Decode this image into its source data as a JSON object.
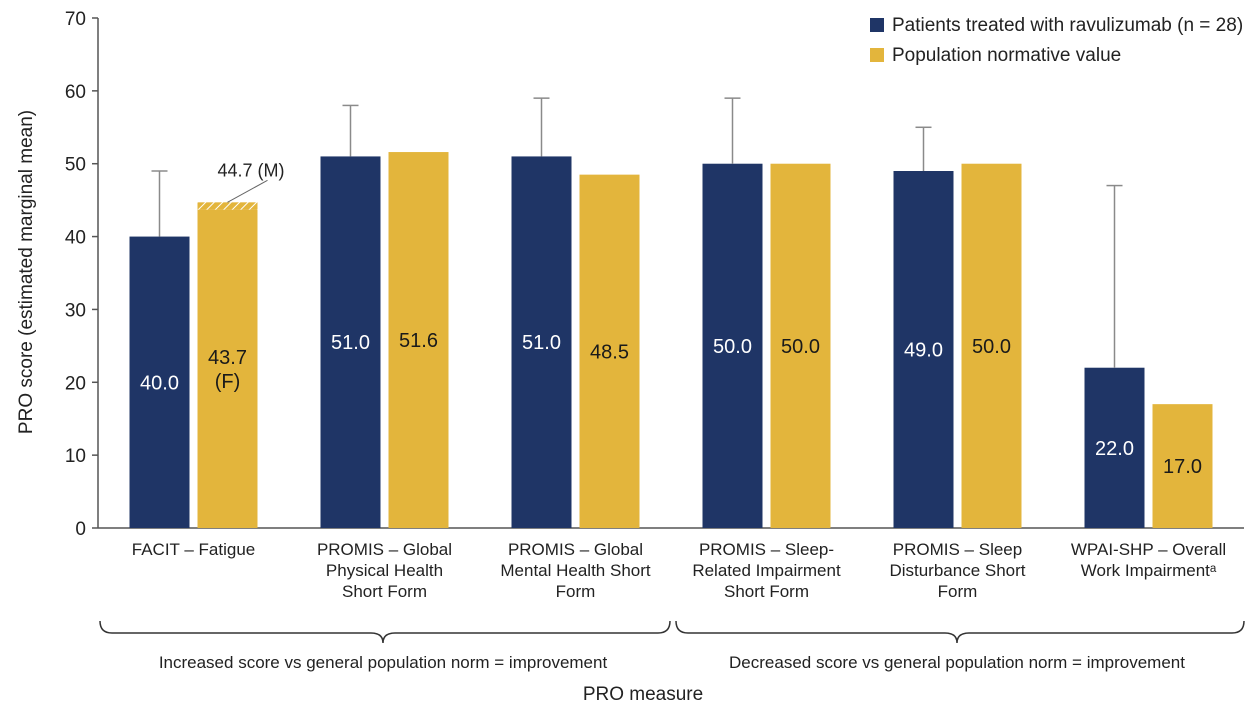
{
  "chart_data": {
    "type": "bar",
    "ylabel": "PRO score (estimated marginal mean)",
    "xlabel": "PRO measure",
    "ylim": [
      0,
      70
    ],
    "yticks": [
      "0",
      "10",
      "20",
      "30",
      "40",
      "50",
      "60",
      "70"
    ],
    "grid": false,
    "legend_position": "top-right",
    "categories": [
      [
        "FACIT – Fatigue"
      ],
      [
        "PROMIS – Global",
        "Physical Health",
        "Short Form"
      ],
      [
        "PROMIS – Global",
        "Mental Health Short",
        "Form"
      ],
      [
        "PROMIS – Sleep-",
        "Related Impairment",
        "Short Form"
      ],
      [
        "PROMIS – Sleep",
        "Disturbance Short",
        "Form"
      ],
      [
        "WPAI-SHP – Overall",
        "Work Impairmentᵃ"
      ]
    ],
    "series": [
      {
        "name": "Patients treated with ravulizumab (n = 28)",
        "color": "#1f3566",
        "label_color": "#ffffff",
        "values": [
          40.0,
          51.0,
          51.0,
          50.0,
          49.0,
          22.0
        ],
        "labels": [
          [
            "40.0"
          ],
          [
            "51.0"
          ],
          [
            "51.0"
          ],
          [
            "50.0"
          ],
          [
            "49.0"
          ],
          [
            "22.0"
          ]
        ],
        "error_upper": [
          49,
          58,
          59,
          59,
          55,
          47
        ]
      },
      {
        "name": "Population normative value",
        "color": "#e3b53c",
        "label_color": "#1a1a1a",
        "values": [
          43.7,
          51.6,
          48.5,
          50.0,
          50.0,
          17.0
        ],
        "labels": [
          [
            "43.7",
            "(F)"
          ],
          [
            "51.6"
          ],
          [
            "48.5"
          ],
          [
            "50.0"
          ],
          [
            "50.0"
          ],
          [
            "17.0"
          ]
        ]
      }
    ],
    "annotation": {
      "text": "44.7 (M)",
      "value": 44.7,
      "category_index": 0
    },
    "groups": [
      {
        "label": "Increased score vs general population norm = improvement",
        "from": 0,
        "to": 2
      },
      {
        "label": "Decreased score vs general population norm = improvement",
        "from": 3,
        "to": 5
      }
    ]
  }
}
